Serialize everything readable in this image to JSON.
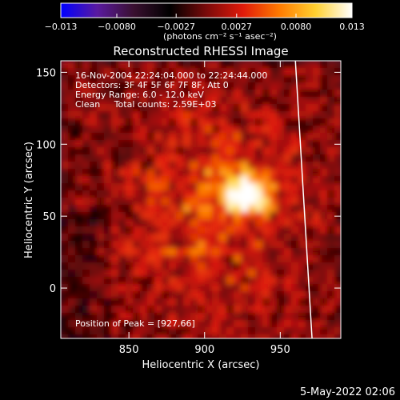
{
  "chart_data": {
    "type": "heatmap",
    "title": "Reconstructed RHESSI Image",
    "xlabel": "Heliocentric X (arcsec)",
    "ylabel": "Heliocentric Y (arcsec)",
    "xlim": [
      805,
      990
    ],
    "ylim": [
      -35,
      158
    ],
    "x_ticks": [
      850,
      900,
      950
    ],
    "y_ticks": [
      0,
      50,
      100,
      150
    ],
    "colorbar": {
      "range": [
        -0.013,
        0.013
      ],
      "tick_values": [
        -0.013,
        -0.008,
        -0.0027,
        0.0027,
        0.008,
        0.013
      ],
      "tick_labels": [
        "−0.013",
        "−0.0080",
        "−0.0027",
        "0.0027",
        "0.0080",
        "0.013"
      ],
      "unit_label": "(photons cm⁻² s⁻¹ asec⁻²)",
      "colors": [
        "#0000ff",
        "#5a1aa0",
        "#3a1030",
        "#000000",
        "#7a0a0a",
        "#e01a0a",
        "#ff7a00",
        "#ffd030",
        "#ffffff"
      ]
    },
    "annotations": [
      "16-Nov-2004 22:24:04.000 to 22:24:44.000",
      "Detectors: 3F 4F 5F 6F 7F 8F, Att 0",
      "Energy Range: 6.0 - 12.0 keV",
      "Clean     Total counts: 2.59E+03"
    ],
    "peak_label": "Position of Peak = [927,66]",
    "peak": [
      927,
      66
    ],
    "peak_value": 0.013,
    "limb": {
      "x_at_top": 960,
      "x_at_bottom": 971
    }
  },
  "footer": {
    "date": "5-May-2022 02:06"
  }
}
